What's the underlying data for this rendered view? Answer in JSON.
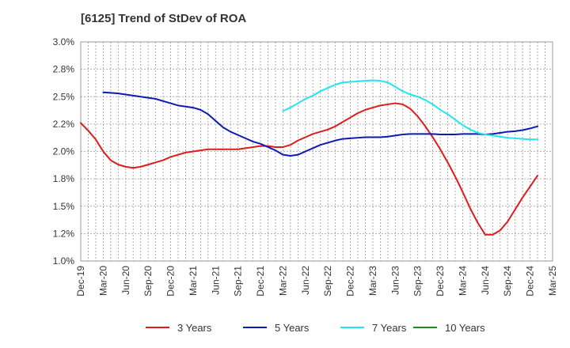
{
  "chart_data": {
    "type": "line",
    "title": "[6125]  Trend of StDev of ROA",
    "xlabel": "",
    "ylabel": "",
    "ylim": [
      1.0,
      3.0
    ],
    "y_ticks": [
      "1.0%",
      "1.2%",
      "1.5%",
      "1.8%",
      "2.0%",
      "2.2%",
      "2.5%",
      "2.8%",
      "3.0%"
    ],
    "x_ticks": [
      "Dec-19",
      "Mar-20",
      "Jun-20",
      "Sep-20",
      "Dec-20",
      "Mar-21",
      "Jun-21",
      "Sep-21",
      "Dec-21",
      "Mar-22",
      "Jun-22",
      "Sep-22",
      "Dec-22",
      "Mar-23",
      "Jun-23",
      "Sep-23",
      "Dec-23",
      "Mar-24",
      "Jun-24",
      "Sep-24",
      "Dec-24",
      "Mar-25"
    ],
    "grid": true,
    "legend_position": "bottom",
    "series": [
      {
        "name": "3 Years",
        "color": "#dd1c1c",
        "values": [
          [
            "Dec-19",
            2.26
          ],
          [
            "Jan-20",
            2.19
          ],
          [
            "Feb-20",
            2.11
          ],
          [
            "Mar-20",
            2.0
          ],
          [
            "Apr-20",
            1.92
          ],
          [
            "May-20",
            1.88
          ],
          [
            "Jun-20",
            1.86
          ],
          [
            "Jul-20",
            1.85
          ],
          [
            "Aug-20",
            1.86
          ],
          [
            "Sep-20",
            1.88
          ],
          [
            "Oct-20",
            1.9
          ],
          [
            "Nov-20",
            1.92
          ],
          [
            "Dec-20",
            1.95
          ],
          [
            "Jan-21",
            1.97
          ],
          [
            "Feb-21",
            1.99
          ],
          [
            "Mar-21",
            2.0
          ],
          [
            "Apr-21",
            2.01
          ],
          [
            "May-21",
            2.02
          ],
          [
            "Jun-21",
            2.02
          ],
          [
            "Jul-21",
            2.02
          ],
          [
            "Aug-21",
            2.02
          ],
          [
            "Sep-21",
            2.02
          ],
          [
            "Oct-21",
            2.03
          ],
          [
            "Nov-21",
            2.04
          ],
          [
            "Dec-21",
            2.05
          ],
          [
            "Jan-22",
            2.05
          ],
          [
            "Feb-22",
            2.04
          ],
          [
            "Mar-22",
            2.04
          ],
          [
            "Apr-22",
            2.06
          ],
          [
            "May-22",
            2.1
          ],
          [
            "Jun-22",
            2.13
          ],
          [
            "Jul-22",
            2.16
          ],
          [
            "Aug-22",
            2.18
          ],
          [
            "Sep-22",
            2.2
          ],
          [
            "Oct-22",
            2.23
          ],
          [
            "Nov-22",
            2.27
          ],
          [
            "Dec-22",
            2.31
          ],
          [
            "Jan-23",
            2.35
          ],
          [
            "Feb-23",
            2.38
          ],
          [
            "Mar-23",
            2.4
          ],
          [
            "Apr-23",
            2.42
          ],
          [
            "May-23",
            2.43
          ],
          [
            "Jun-23",
            2.44
          ],
          [
            "Jul-23",
            2.43
          ],
          [
            "Aug-23",
            2.39
          ],
          [
            "Sep-23",
            2.32
          ],
          [
            "Oct-23",
            2.23
          ],
          [
            "Nov-23",
            2.13
          ],
          [
            "Dec-23",
            2.02
          ],
          [
            "Jan-24",
            1.9
          ],
          [
            "Feb-24",
            1.77
          ],
          [
            "Mar-24",
            1.63
          ],
          [
            "Apr-24",
            1.48
          ],
          [
            "May-24",
            1.35
          ],
          [
            "Jun-24",
            1.24
          ],
          [
            "Jul-24",
            1.24
          ],
          [
            "Aug-24",
            1.28
          ],
          [
            "Sep-24",
            1.36
          ],
          [
            "Oct-24",
            1.47
          ],
          [
            "Nov-24",
            1.58
          ],
          [
            "Dec-24",
            1.68
          ],
          [
            "Jan-25",
            1.78
          ]
        ]
      },
      {
        "name": "5 Years",
        "color": "#0d1ab5",
        "values": [
          [
            "Mar-20",
            2.54
          ],
          [
            "Apr-20",
            2.535
          ],
          [
            "May-20",
            2.53
          ],
          [
            "Jun-20",
            2.52
          ],
          [
            "Jul-20",
            2.51
          ],
          [
            "Aug-20",
            2.5
          ],
          [
            "Sep-20",
            2.49
          ],
          [
            "Oct-20",
            2.48
          ],
          [
            "Nov-20",
            2.46
          ],
          [
            "Dec-20",
            2.44
          ],
          [
            "Jan-21",
            2.42
          ],
          [
            "Feb-21",
            2.41
          ],
          [
            "Mar-21",
            2.4
          ],
          [
            "Apr-21",
            2.38
          ],
          [
            "May-21",
            2.34
          ],
          [
            "Jun-21",
            2.28
          ],
          [
            "Jul-21",
            2.22
          ],
          [
            "Aug-21",
            2.18
          ],
          [
            "Sep-21",
            2.15
          ],
          [
            "Oct-21",
            2.12
          ],
          [
            "Nov-21",
            2.09
          ],
          [
            "Dec-21",
            2.07
          ],
          [
            "Jan-22",
            2.04
          ],
          [
            "Feb-22",
            2.01
          ],
          [
            "Mar-22",
            1.97
          ],
          [
            "Apr-22",
            1.96
          ],
          [
            "May-22",
            1.97
          ],
          [
            "Jun-22",
            2.0
          ],
          [
            "Jul-22",
            2.03
          ],
          [
            "Aug-22",
            2.06
          ],
          [
            "Sep-22",
            2.08
          ],
          [
            "Oct-22",
            2.1
          ],
          [
            "Nov-22",
            2.115
          ],
          [
            "Dec-22",
            2.12
          ],
          [
            "Jan-23",
            2.125
          ],
          [
            "Feb-23",
            2.13
          ],
          [
            "Mar-23",
            2.13
          ],
          [
            "Apr-23",
            2.13
          ],
          [
            "May-23",
            2.135
          ],
          [
            "Jun-23",
            2.145
          ],
          [
            "Jul-23",
            2.155
          ],
          [
            "Aug-23",
            2.16
          ],
          [
            "Sep-23",
            2.16
          ],
          [
            "Oct-23",
            2.16
          ],
          [
            "Nov-23",
            2.16
          ],
          [
            "Dec-23",
            2.155
          ],
          [
            "Jan-24",
            2.155
          ],
          [
            "Feb-24",
            2.155
          ],
          [
            "Mar-24",
            2.16
          ],
          [
            "Apr-24",
            2.16
          ],
          [
            "May-24",
            2.16
          ],
          [
            "Jun-24",
            2.155
          ],
          [
            "Jul-24",
            2.16
          ],
          [
            "Aug-24",
            2.17
          ],
          [
            "Sep-24",
            2.18
          ],
          [
            "Oct-24",
            2.185
          ],
          [
            "Nov-24",
            2.195
          ],
          [
            "Dec-24",
            2.21
          ],
          [
            "Jan-25",
            2.23
          ]
        ]
      },
      {
        "name": "7 Years",
        "color": "#22e5ee",
        "values": [
          [
            "Mar-22",
            2.37
          ],
          [
            "Apr-22",
            2.4
          ],
          [
            "May-22",
            2.44
          ],
          [
            "Jun-22",
            2.48
          ],
          [
            "Jul-22",
            2.51
          ],
          [
            "Aug-22",
            2.55
          ],
          [
            "Sep-22",
            2.58
          ],
          [
            "Oct-22",
            2.61
          ],
          [
            "Nov-22",
            2.63
          ],
          [
            "Dec-22",
            2.635
          ],
          [
            "Jan-23",
            2.64
          ],
          [
            "Feb-23",
            2.645
          ],
          [
            "Mar-23",
            2.65
          ],
          [
            "Apr-23",
            2.645
          ],
          [
            "May-23",
            2.63
          ],
          [
            "Jun-23",
            2.59
          ],
          [
            "Jul-23",
            2.55
          ],
          [
            "Aug-23",
            2.52
          ],
          [
            "Sep-23",
            2.5
          ],
          [
            "Oct-23",
            2.47
          ],
          [
            "Nov-23",
            2.43
          ],
          [
            "Dec-23",
            2.38
          ],
          [
            "Jan-24",
            2.34
          ],
          [
            "Feb-24",
            2.29
          ],
          [
            "Mar-24",
            2.24
          ],
          [
            "Apr-24",
            2.2
          ],
          [
            "May-24",
            2.17
          ],
          [
            "Jun-24",
            2.155
          ],
          [
            "Jul-24",
            2.145
          ],
          [
            "Aug-24",
            2.135
          ],
          [
            "Sep-24",
            2.125
          ],
          [
            "Oct-24",
            2.12
          ],
          [
            "Nov-24",
            2.115
          ],
          [
            "Dec-24",
            2.11
          ],
          [
            "Jan-25",
            2.11
          ]
        ]
      },
      {
        "name": "10 Years",
        "color": "#1f8a1f",
        "values": []
      }
    ]
  }
}
